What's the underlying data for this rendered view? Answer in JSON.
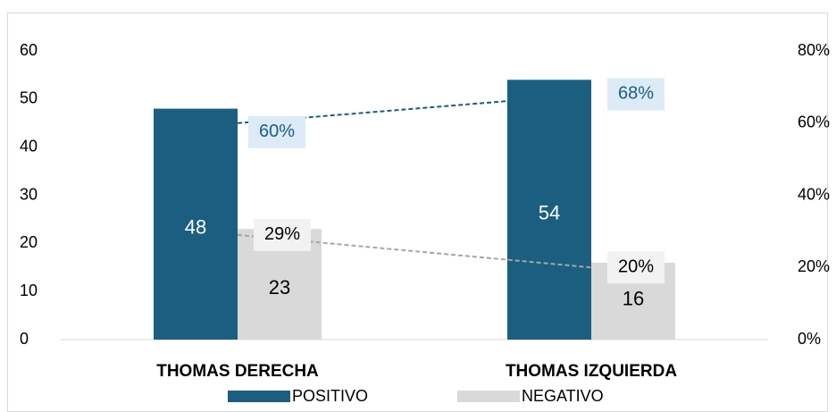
{
  "chart_data": {
    "type": "bar",
    "categories": [
      "THOMAS DERECHA",
      "THOMAS IZQUIERDA"
    ],
    "series": [
      {
        "name": "POSITIVO",
        "color": "#1b5e80",
        "values": [
          48,
          54
        ]
      },
      {
        "name": "NEGATIVO",
        "color": "#d9d9d9",
        "values": [
          23,
          16
        ]
      },
      {
        "type": "line",
        "axis": "y2",
        "color": "#1b5e80",
        "values": [
          60,
          68
        ],
        "value_labels": [
          "60%",
          "68%"
        ]
      },
      {
        "type": "line",
        "axis": "y2",
        "color": "#a6a6a6",
        "values": [
          29,
          20
        ],
        "value_labels": [
          "29%",
          "20%"
        ]
      }
    ],
    "ylim": [
      0,
      60
    ],
    "yticks": [
      0,
      10,
      20,
      30,
      40,
      50,
      60
    ],
    "y2lim": [
      0,
      80
    ],
    "y2ticks": [
      {
        "value": 0,
        "label": "0%"
      },
      {
        "value": 20,
        "label": "20%"
      },
      {
        "value": 40,
        "label": "40%"
      },
      {
        "value": 60,
        "label": "60%"
      },
      {
        "value": 80,
        "label": "80%"
      }
    ],
    "legend": "bottom"
  }
}
